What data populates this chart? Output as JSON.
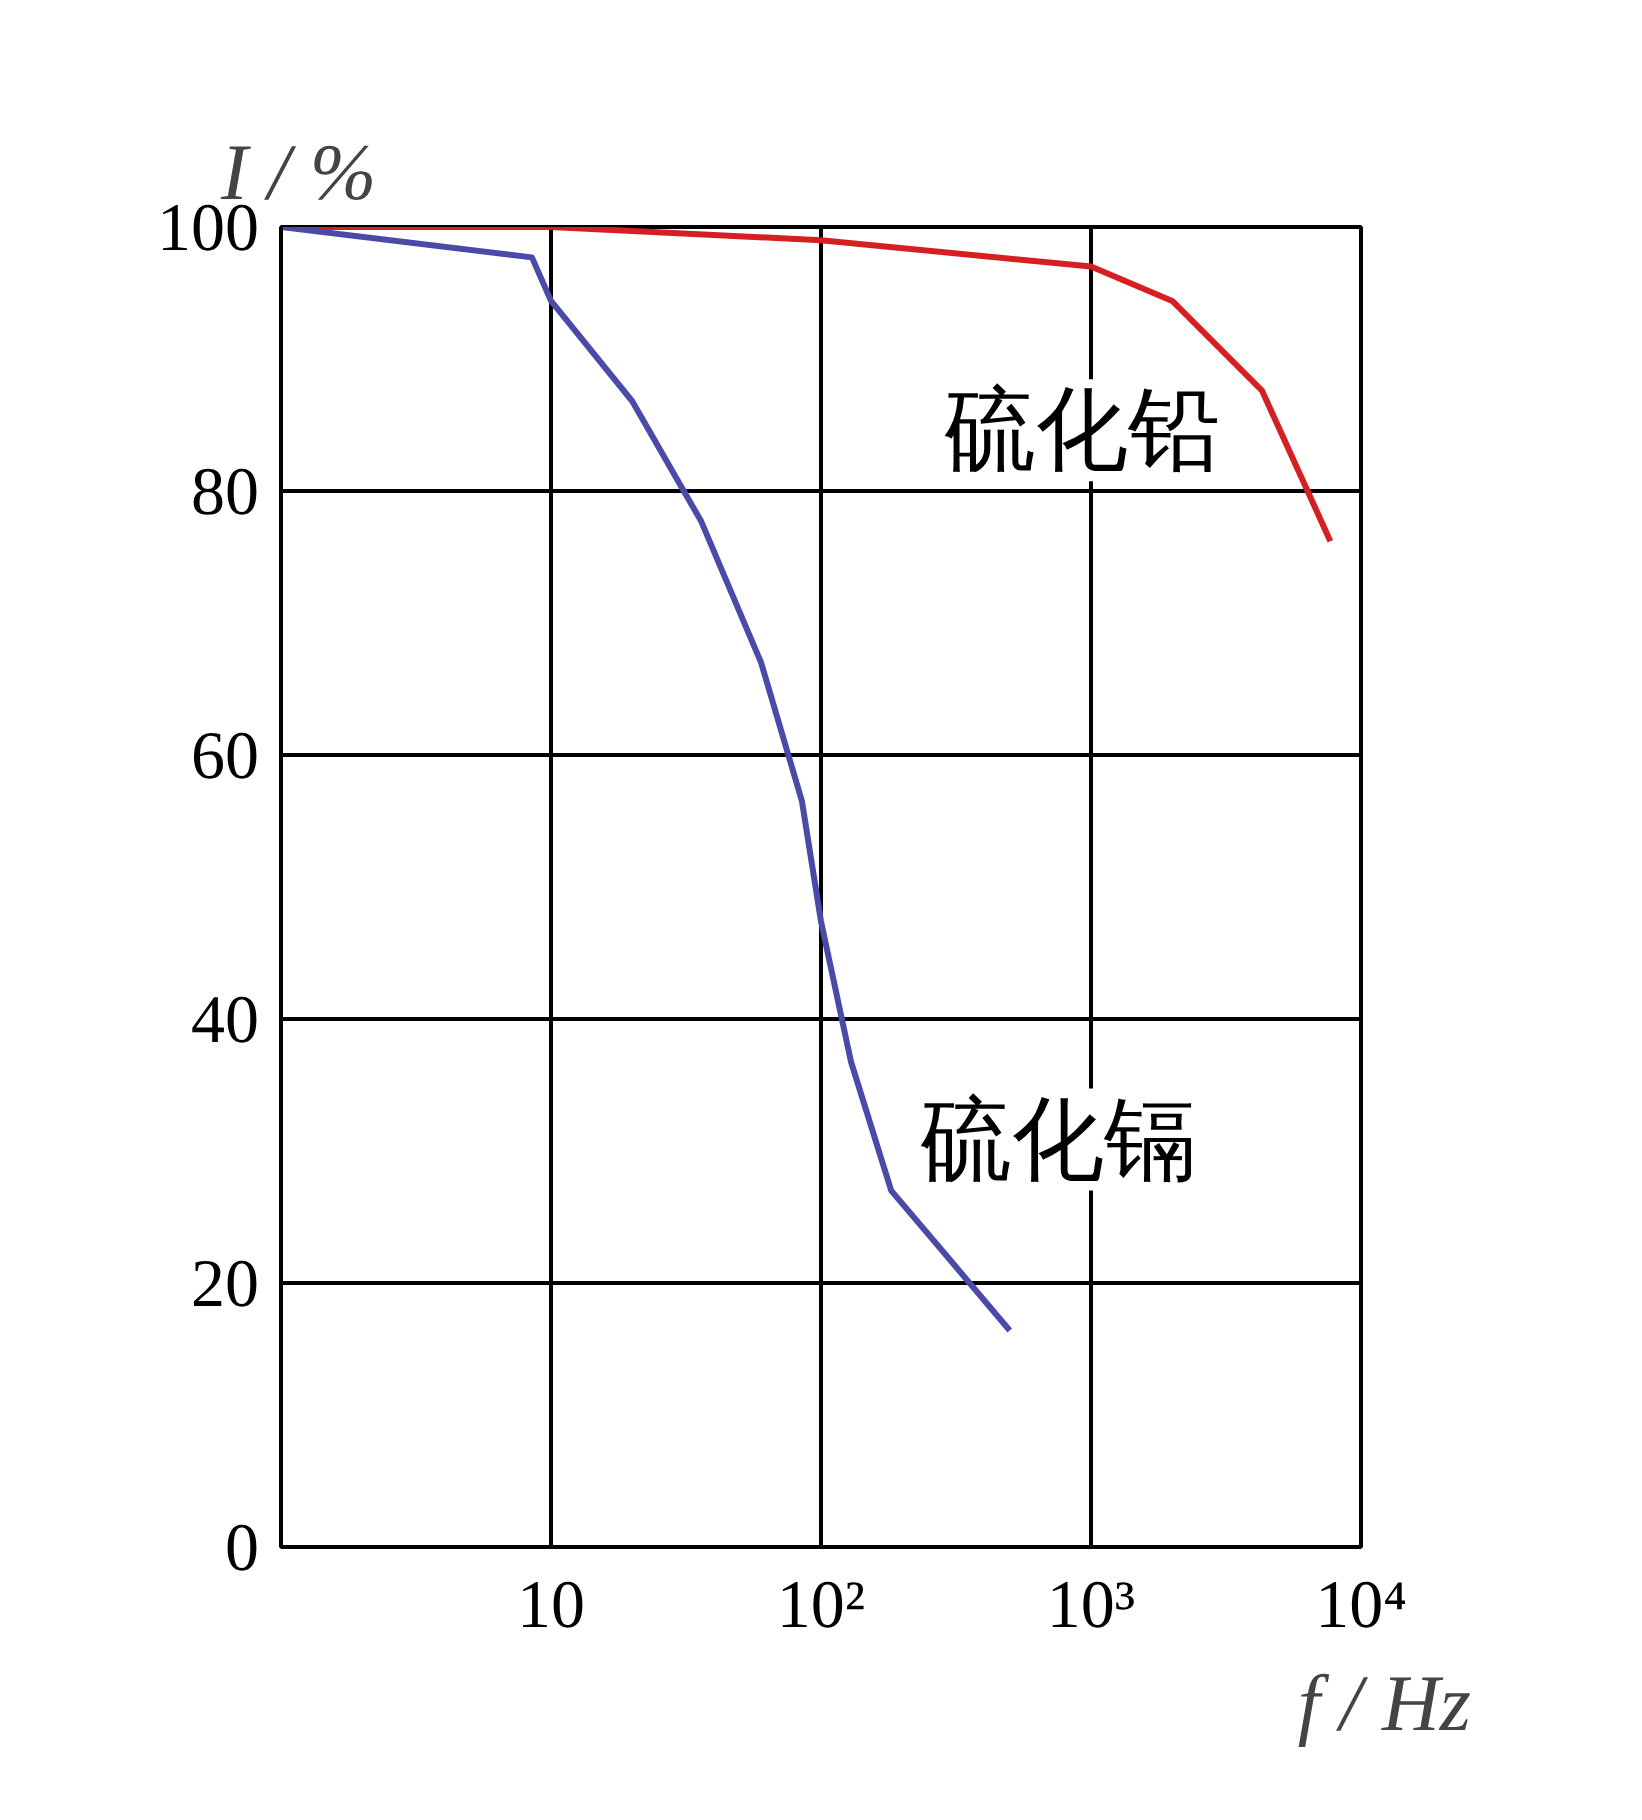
{
  "chart_data": {
    "type": "line",
    "xlabel": "f / Hz",
    "ylabel": "I / %",
    "log": "x",
    "xlim": [
      1,
      10000
    ],
    "xticks": [
      {
        "value": 1,
        "label": null
      },
      10,
      {
        "value": 100,
        "label": "10²"
      },
      {
        "value": 1000,
        "label": "10³"
      },
      {
        "value": 10000,
        "label": "10⁴"
      }
    ],
    "ylim": [
      0,
      100
    ],
    "yticks": [
      0,
      20,
      40,
      60,
      80,
      100
    ],
    "grid": true,
    "marker": "none",
    "line_style": "solid",
    "series": [
      {
        "name": "硫化铅",
        "color": "#d42020",
        "x": [
          1,
          10,
          100,
          1000,
          2000,
          4300,
          7700
        ],
        "values": [
          100,
          100,
          99,
          97,
          94.4,
          87.6,
          76.2
        ]
      },
      {
        "name": "硫化镉",
        "color": "#4a4aa8",
        "x": [
          1,
          8.5,
          10,
          20,
          36,
          60,
          85,
          100,
          129,
          182,
          302,
          500
        ],
        "values": [
          100,
          97.7,
          94.4,
          86.8,
          77.7,
          67,
          56.5,
          47.4,
          36.8,
          27,
          21.7,
          16.4
        ]
      }
    ]
  }
}
